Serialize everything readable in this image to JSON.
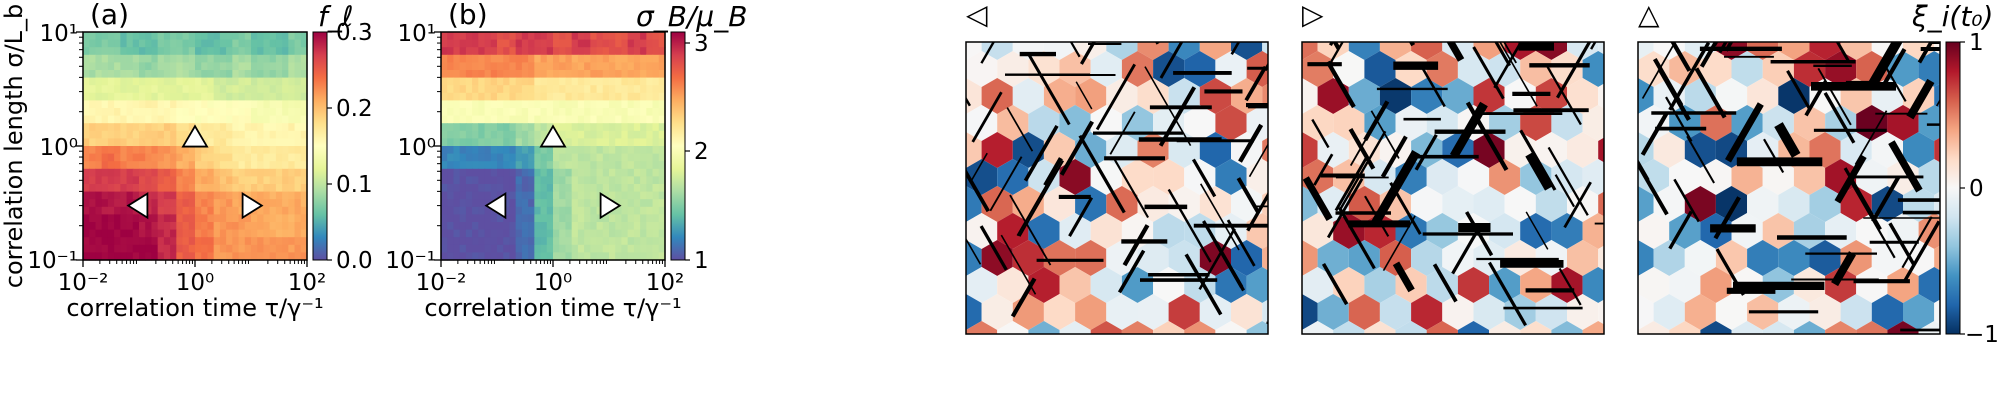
{
  "chart_data": [
    {
      "panel": "(a)",
      "type": "heatmap",
      "colorbar_title": "f_ℓ",
      "xlabel": "correlation time τ/γ⁻¹",
      "ylabel": "correlation length σ/L_b",
      "x_scale": "log",
      "y_scale": "log",
      "xlim": [
        0.01,
        100
      ],
      "ylim": [
        0.1,
        10
      ],
      "x_ticks": [
        "10⁻²",
        "10⁰",
        "10²"
      ],
      "y_ticks": [
        "10⁻¹",
        "10⁰",
        "10¹"
      ],
      "colorbar_ticks": [
        "0.0",
        "0.1",
        "0.2",
        "0.3"
      ],
      "colorbar_range": [
        0,
        0.3
      ],
      "colormap": "Spectral_r",
      "grid_values": [
        [
          0.07,
          0.07,
          0.06,
          0.06,
          0.07,
          0.07,
          0.06,
          0.06,
          0.07,
          0.06,
          0.06,
          0.07
        ],
        [
          0.09,
          0.09,
          0.09,
          0.08,
          0.09,
          0.09,
          0.08,
          0.08,
          0.09,
          0.08,
          0.08,
          0.09
        ],
        [
          0.12,
          0.12,
          0.12,
          0.12,
          0.12,
          0.12,
          0.12,
          0.11,
          0.11,
          0.11,
          0.11,
          0.11
        ],
        [
          0.16,
          0.16,
          0.16,
          0.16,
          0.16,
          0.15,
          0.15,
          0.15,
          0.15,
          0.14,
          0.14,
          0.14
        ],
        [
          0.19,
          0.19,
          0.19,
          0.19,
          0.19,
          0.18,
          0.17,
          0.17,
          0.16,
          0.16,
          0.16,
          0.16
        ],
        [
          0.23,
          0.24,
          0.23,
          0.23,
          0.22,
          0.21,
          0.19,
          0.18,
          0.17,
          0.17,
          0.17,
          0.17
        ],
        [
          0.27,
          0.27,
          0.27,
          0.26,
          0.25,
          0.23,
          0.21,
          0.2,
          0.19,
          0.19,
          0.19,
          0.19
        ],
        [
          0.29,
          0.29,
          0.29,
          0.28,
          0.27,
          0.25,
          0.23,
          0.22,
          0.21,
          0.21,
          0.21,
          0.21
        ],
        [
          0.3,
          0.3,
          0.3,
          0.29,
          0.28,
          0.25,
          0.23,
          0.22,
          0.22,
          0.21,
          0.21,
          0.21
        ],
        [
          0.3,
          0.3,
          0.3,
          0.3,
          0.28,
          0.25,
          0.24,
          0.22,
          0.22,
          0.22,
          0.22,
          0.22
        ]
      ],
      "markers": [
        {
          "symbol": "◁",
          "x": 0.1,
          "y": 0.3
        },
        {
          "symbol": "▷",
          "x": 10,
          "y": 0.3
        },
        {
          "symbol": "△",
          "x": 1,
          "y": 1.2
        }
      ]
    },
    {
      "panel": "(b)",
      "type": "heatmap",
      "colorbar_title": "σ_B/μ_B",
      "xlabel": "correlation time τ/γ⁻¹",
      "x_scale": "log",
      "y_scale": "log",
      "xlim": [
        0.01,
        100
      ],
      "ylim": [
        0.1,
        10
      ],
      "x_ticks": [
        "10⁻²",
        "10⁰",
        "10²"
      ],
      "y_ticks": [
        "10⁻¹",
        "10⁰",
        "10¹"
      ],
      "colorbar_ticks": [
        "1",
        "2",
        "3"
      ],
      "colorbar_range": [
        1,
        3.1
      ],
      "colormap": "Spectral_r",
      "grid_values": [
        [
          2.9,
          2.9,
          2.9,
          2.8,
          2.9,
          2.9,
          2.8,
          2.9,
          2.8,
          2.8,
          2.9,
          2.8
        ],
        [
          2.6,
          2.6,
          2.6,
          2.6,
          2.6,
          2.5,
          2.5,
          2.5,
          2.5,
          2.5,
          2.5,
          2.5
        ],
        [
          2.3,
          2.3,
          2.3,
          2.3,
          2.3,
          2.2,
          2.2,
          2.2,
          2.2,
          2.2,
          2.2,
          2.2
        ],
        [
          2.0,
          2.0,
          2.0,
          2.0,
          2.0,
          2.0,
          2.0,
          2.0,
          2.0,
          2.0,
          2.0,
          2.0
        ],
        [
          1.5,
          1.5,
          1.5,
          1.5,
          1.6,
          1.7,
          1.8,
          1.8,
          1.8,
          1.8,
          1.8,
          1.8
        ],
        [
          1.2,
          1.2,
          1.2,
          1.2,
          1.3,
          1.5,
          1.7,
          1.7,
          1.7,
          1.7,
          1.7,
          1.7
        ],
        [
          1.0,
          1.0,
          1.0,
          1.0,
          1.1,
          1.4,
          1.6,
          1.7,
          1.7,
          1.7,
          1.7,
          1.7
        ],
        [
          1.0,
          1.0,
          1.0,
          1.0,
          1.1,
          1.4,
          1.6,
          1.7,
          1.7,
          1.7,
          1.7,
          1.7
        ],
        [
          1.0,
          1.0,
          1.0,
          1.0,
          1.1,
          1.4,
          1.6,
          1.7,
          1.7,
          1.7,
          1.7,
          1.7
        ],
        [
          1.0,
          1.0,
          1.0,
          1.0,
          1.1,
          1.4,
          1.6,
          1.7,
          1.7,
          1.7,
          1.7,
          1.7
        ]
      ],
      "markers": [
        {
          "symbol": "◁",
          "x": 0.1,
          "y": 0.3
        },
        {
          "symbol": "▷",
          "x": 10,
          "y": 0.3
        },
        {
          "symbol": "△",
          "x": 1,
          "y": 1.2
        }
      ]
    },
    {
      "panel": "◁",
      "type": "network",
      "colorbar_title": "ξ_i(t₀)",
      "colorbar_ticks": [
        "1",
        "0",
        "−1"
      ],
      "colorbar_range": [
        -1,
        1
      ],
      "colormap": "RdBu_r"
    },
    {
      "panel": "▷",
      "type": "network"
    },
    {
      "panel": "△",
      "type": "network"
    }
  ]
}
